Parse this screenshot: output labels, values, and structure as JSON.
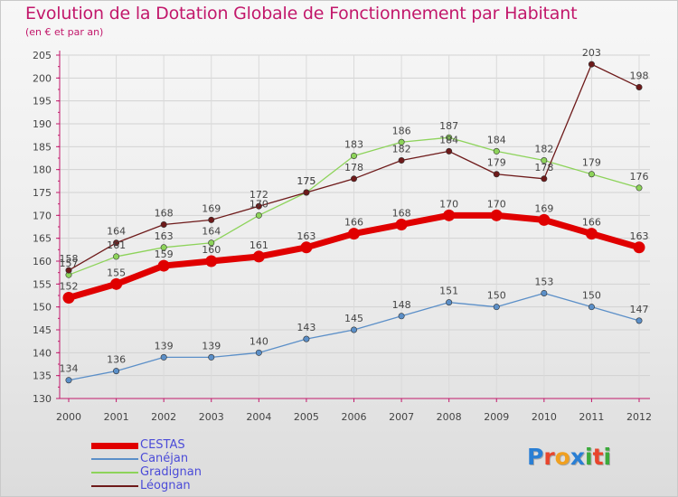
{
  "title": "Evolution de la Dotation Globale de Fonctionnement par Habitant",
  "subtitle": "(en € et par an)",
  "logo": {
    "text": "Proxiti",
    "letters": [
      "P",
      "r",
      "o",
      "x",
      "i",
      "t",
      "i"
    ],
    "colors": [
      "#2a7fd4",
      "#e8452c",
      "#f0a020",
      "#2a7fd4",
      "#3caa3c",
      "#e8452c",
      "#3caa3c"
    ]
  },
  "chart_data": {
    "type": "line",
    "x": [
      2000,
      2001,
      2002,
      2003,
      2004,
      2005,
      2006,
      2007,
      2008,
      2009,
      2010,
      2011,
      2012
    ],
    "ylim": [
      130,
      205
    ],
    "yticks": [
      130,
      135,
      140,
      145,
      150,
      155,
      160,
      165,
      170,
      175,
      180,
      185,
      190,
      195,
      200,
      205
    ],
    "grid": true,
    "legend": "bottom-left",
    "series": [
      {
        "name": "CESTAS",
        "color": "#e00000",
        "values": [
          152,
          155,
          159,
          160,
          161,
          163,
          166,
          168,
          170,
          170,
          169,
          166,
          163
        ]
      },
      {
        "name": "Canéjan",
        "color": "#5b8fc8",
        "values": [
          134,
          136,
          139,
          139,
          140,
          143,
          145,
          148,
          151,
          150,
          153,
          150,
          147
        ]
      },
      {
        "name": "Gradignan",
        "color": "#8dd35a",
        "values": [
          157,
          161,
          163,
          164,
          170,
          175,
          183,
          186,
          187,
          184,
          182,
          179,
          176
        ]
      },
      {
        "name": "Léognan",
        "color": "#6e1a1a",
        "values": [
          158,
          164,
          168,
          169,
          172,
          175,
          178,
          182,
          184,
          179,
          178,
          203,
          198
        ]
      }
    ]
  }
}
